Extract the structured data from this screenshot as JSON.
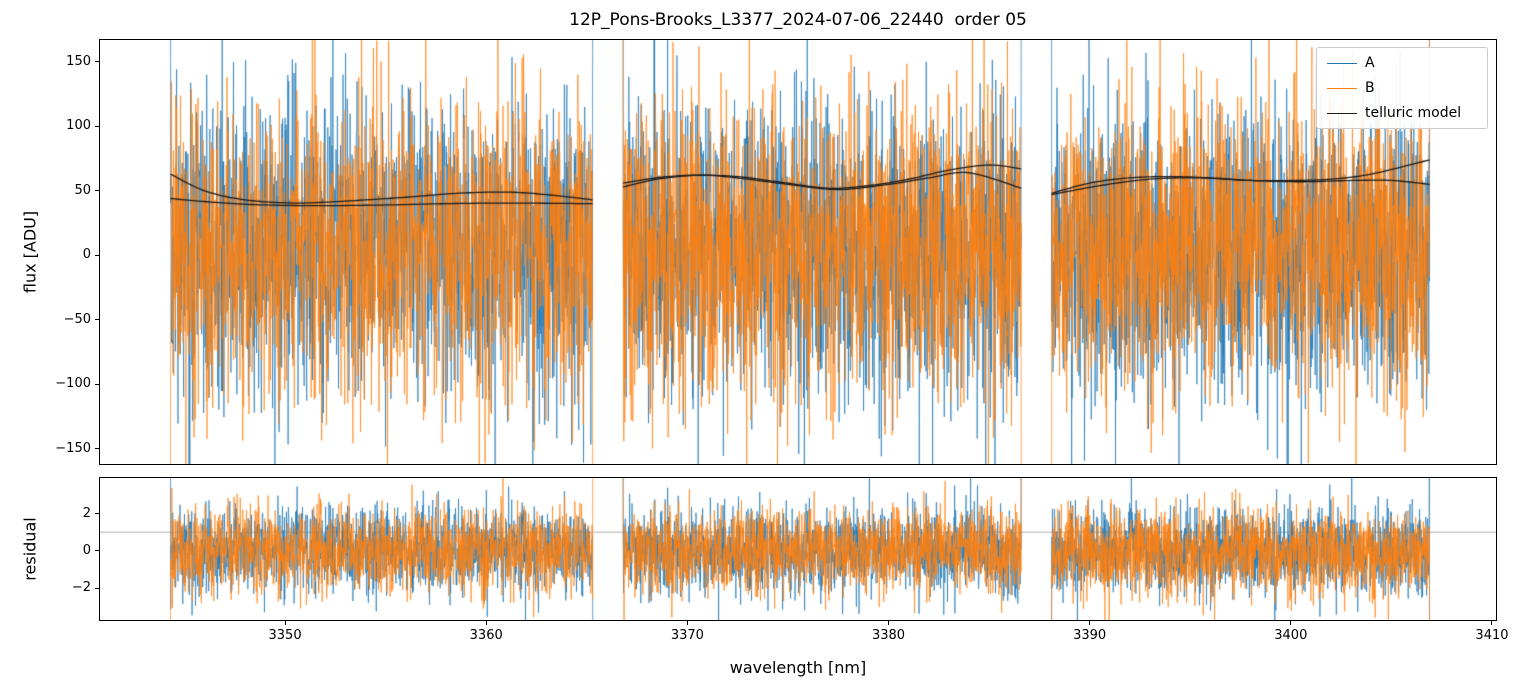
{
  "figure": {
    "title": "12P_Pons-Brooks_L3377_2024-07-06_22440  order 05",
    "xlabel": "wavelength [nm]",
    "background": "#ffffff"
  },
  "colors": {
    "A": "#1f77b4",
    "B": "#ff7f0e",
    "model": "#1a1a1a",
    "hline": "#999999",
    "spine": "#000000"
  },
  "legend": {
    "entries": [
      {
        "label": "A",
        "color": "#1f77b4",
        "line_width": 1.6
      },
      {
        "label": "B",
        "color": "#ff7f0e",
        "line_width": 1.6
      },
      {
        "label": "telluric model",
        "color": "#1a1a1a",
        "line_width": 1.6
      }
    ]
  },
  "chart_data": [
    {
      "type": "line",
      "title": "12P_Pons-Brooks_L3377_2024-07-06_22440  order 05",
      "ylabel": "flux [ADU]",
      "xlabel": "",
      "xlim": [
        3340.8,
        3410.2
      ],
      "ylim": [
        -162,
        167
      ],
      "yticks": [
        -150,
        -100,
        -50,
        0,
        50,
        100,
        150
      ],
      "xticks": [
        3350,
        3360,
        3370,
        3380,
        3390,
        3400,
        3410
      ],
      "grid": false,
      "legend_position": "upper right",
      "segments": [
        [
          3344.3,
          3365.3
        ],
        [
          3366.8,
          3386.6
        ],
        [
          3388.1,
          3406.9
        ]
      ],
      "points_per_segment": 1500,
      "edge_spike": 380,
      "series": [
        {
          "name": "A",
          "color": "#1f77b4",
          "noise_mean": 5,
          "noise_sigma": 58,
          "seed": 11
        },
        {
          "name": "B",
          "color": "#ff7f0e",
          "noise_mean": 5,
          "noise_sigma": 58,
          "seed": 22
        }
      ],
      "model": {
        "name": "telluric model",
        "color": "#1a1a1a",
        "curves": [
          [
            [
              3344.3,
              63
            ],
            [
              3346,
              50
            ],
            [
              3348,
              43
            ],
            [
              3350.5,
              40.5
            ],
            [
              3353,
              42
            ],
            [
              3356,
              45
            ],
            [
              3358.5,
              48
            ],
            [
              3361,
              49
            ],
            [
              3363,
              47
            ],
            [
              3365.3,
              43
            ]
          ],
          [
            [
              3344.3,
              44
            ],
            [
              3346.5,
              41
            ],
            [
              3349,
              39
            ],
            [
              3352,
              38.5
            ],
            [
              3355,
              39
            ],
            [
              3358,
              40
            ],
            [
              3361,
              40.5
            ],
            [
              3365.3,
              40
            ]
          ],
          [
            [
              3366.8,
              53
            ],
            [
              3368.5,
              59
            ],
            [
              3370.5,
              62
            ],
            [
              3372.5,
              61
            ],
            [
              3374.5,
              57
            ],
            [
              3377,
              52
            ],
            [
              3379,
              54
            ],
            [
              3381,
              59
            ],
            [
              3383,
              66
            ],
            [
              3385,
              70
            ],
            [
              3386.6,
              67
            ]
          ],
          [
            [
              3366.8,
              56
            ],
            [
              3369,
              61
            ],
            [
              3371,
              62
            ],
            [
              3373,
              59
            ],
            [
              3375,
              55
            ],
            [
              3377.5,
              51
            ],
            [
              3380,
              55
            ],
            [
              3382,
              60
            ],
            [
              3384,
              64
            ],
            [
              3386.6,
              52
            ]
          ],
          [
            [
              3388.1,
              48
            ],
            [
              3390,
              56
            ],
            [
              3392,
              60
            ],
            [
              3394,
              61
            ],
            [
              3396,
              60
            ],
            [
              3398,
              58
            ],
            [
              3400,
              58
            ],
            [
              3402,
              59
            ],
            [
              3404,
              63
            ],
            [
              3406.9,
              74
            ]
          ],
          [
            [
              3388.1,
              47
            ],
            [
              3390.5,
              54
            ],
            [
              3393,
              59
            ],
            [
              3395.5,
              60
            ],
            [
              3398,
              58
            ],
            [
              3400.5,
              57
            ],
            [
              3403,
              58
            ],
            [
              3405,
              58
            ],
            [
              3406.9,
              55
            ]
          ]
        ]
      }
    },
    {
      "type": "line",
      "title": "",
      "ylabel": "residual",
      "xlabel": "wavelength [nm]",
      "xlim": [
        3340.8,
        3410.2
      ],
      "ylim": [
        -3.7,
        3.9
      ],
      "yticks": [
        -2,
        0,
        2
      ],
      "xticks": [
        3350,
        3360,
        3370,
        3380,
        3390,
        3400,
        3410
      ],
      "grid": false,
      "hline": 1,
      "segments": [
        [
          3344.3,
          3365.3
        ],
        [
          3366.8,
          3386.6
        ],
        [
          3388.1,
          3406.9
        ]
      ],
      "points_per_segment": 1500,
      "edge_spike": 8,
      "series": [
        {
          "name": "A",
          "color": "#1f77b4",
          "noise_mean": 0,
          "noise_sigma": 1.15,
          "seed": 33
        },
        {
          "name": "B",
          "color": "#ff7f0e",
          "noise_mean": 0,
          "noise_sigma": 1.15,
          "seed": 44
        }
      ]
    }
  ]
}
